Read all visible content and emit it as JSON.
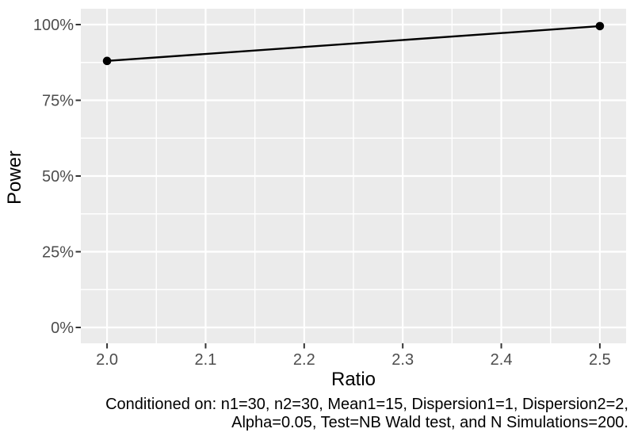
{
  "chart_data": {
    "type": "line",
    "title": "",
    "xlabel": "Ratio",
    "ylabel": "Power",
    "x": [
      2.0,
      2.5
    ],
    "series": [
      {
        "name": "Power",
        "values_percent": [
          88,
          99.5
        ]
      }
    ],
    "x_ticks": [
      {
        "value": 2.0,
        "label": "2.0"
      },
      {
        "value": 2.1,
        "label": "2.1"
      },
      {
        "value": 2.2,
        "label": "2.2"
      },
      {
        "value": 2.3,
        "label": "2.3"
      },
      {
        "value": 2.4,
        "label": "2.4"
      },
      {
        "value": 2.5,
        "label": "2.5"
      }
    ],
    "y_ticks": [
      {
        "value": 0,
        "label": "0%"
      },
      {
        "value": 25,
        "label": "25%"
      },
      {
        "value": 50,
        "label": "50%"
      },
      {
        "value": 75,
        "label": "75%"
      },
      {
        "value": 100,
        "label": "100%"
      }
    ],
    "x_minor_ticks": [
      2.05,
      2.15,
      2.25,
      2.35,
      2.45
    ],
    "y_minor_ticks_percent": [
      12.5,
      37.5,
      62.5,
      87.5
    ],
    "xlim": [
      1.9734,
      2.5266
    ],
    "ylim_percent": [
      -5.24,
      105.24
    ],
    "grid": "major-and-minor-white",
    "legend": "none",
    "colors": {
      "panel_background": "#EBEBEB",
      "gridline": "#FFFFFF",
      "line": "#000000",
      "point": "#000000",
      "axis_tick": "#333333",
      "tick_label": "#4D4D4D",
      "axis_title": "#000000",
      "caption": "#000000"
    }
  },
  "caption": {
    "line1": "Conditioned on: n1=30, n2=30, Mean1=15, Dispersion1=1, Dispersion2=2,",
    "line2": "Alpha=0.05, Test=NB Wald test, and N Simulations=200."
  }
}
